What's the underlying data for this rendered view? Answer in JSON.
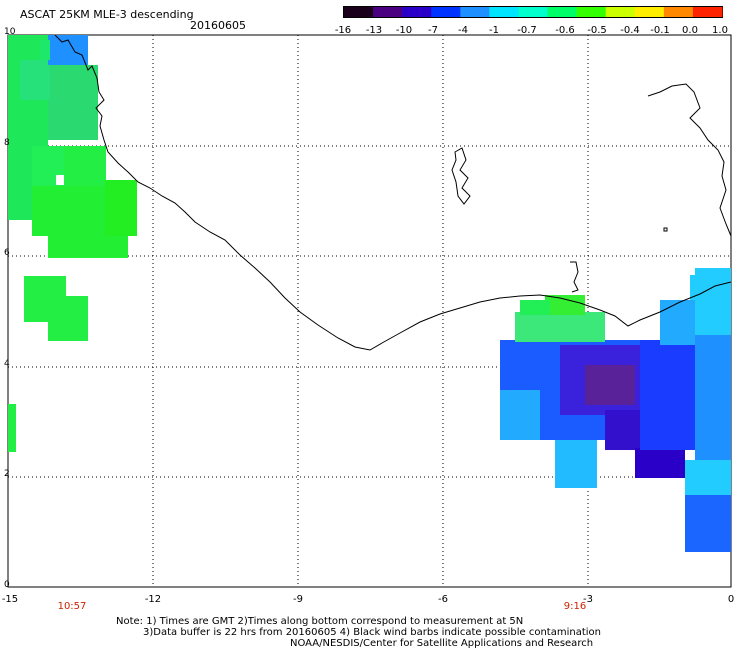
{
  "header": {
    "title": "ASCAT 25KM MLE-3 descending",
    "date": "20160605"
  },
  "colorbar": {
    "labels": [
      "-16",
      "-13",
      "-10",
      "-7",
      "-4",
      "-1",
      "-0.7",
      "-0.6",
      "-0.5",
      "-0.4",
      "-0.1",
      "0.0",
      "1.0"
    ],
    "colors": [
      "#1a001a",
      "#4b0082",
      "#2a00c8",
      "#0033ff",
      "#1e90ff",
      "#00e5ff",
      "#00ffcc",
      "#00ff66",
      "#33ff00",
      "#ccff00",
      "#ffee00",
      "#ff8800",
      "#ff2200"
    ]
  },
  "axes": {
    "lon_labels": [
      "-15",
      "-12",
      "-9",
      "-6",
      "-3",
      "0"
    ],
    "lat_labels": [
      "10",
      "8",
      "6",
      "4",
      "2",
      "0"
    ]
  },
  "pass_times": [
    "10:57",
    "9:16"
  ],
  "notes": {
    "line1": "Note: 1) Times are GMT 2)Times along bottom correspond to measurement at 5N",
    "line2": "3)Data buffer is 22 hrs from 20160605 4) Black wind barbs indicate possible contamination",
    "line3": "NOAA/NESDIS/Center for Satellite Applications and Research"
  }
}
